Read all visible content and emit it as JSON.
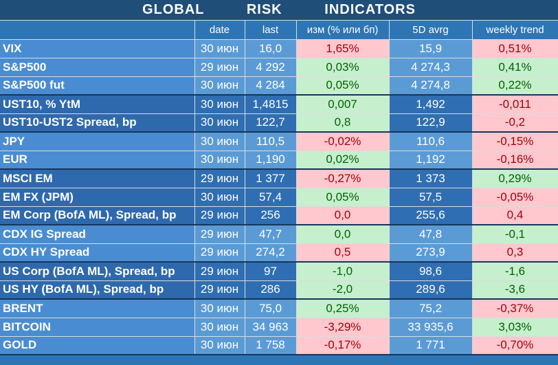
{
  "title": "GLOBAL   RISK   INDICATORS",
  "headers": [
    "",
    "date",
    "last",
    "изм (% или бп)",
    "5D avrg",
    "weekly trend"
  ],
  "colors": {
    "positive_bg": "#c6efce",
    "positive_text": "#006100",
    "negative_bg": "#ffc7ce",
    "negative_text": "#9c0006",
    "header_bg": "#1f4e79"
  },
  "rows": [
    {
      "name": "VIX",
      "date": "30 июн",
      "last": "16,0",
      "chg": "1,65%",
      "chg_sign": "neg",
      "avg": "15,9",
      "trend": "0,51%",
      "trend_sign": "neg",
      "group": 0,
      "group_end": false
    },
    {
      "name": "S&P500",
      "date": "29 июн",
      "last": "4 292",
      "chg": "0,03%",
      "chg_sign": "pos",
      "avg": "4 274,3",
      "trend": "0,41%",
      "trend_sign": "pos",
      "group": 0,
      "group_end": false
    },
    {
      "name": "S&P500 fut",
      "date": "30 июн",
      "last": "4 284",
      "chg": "0,05%",
      "chg_sign": "pos",
      "avg": "4 274,8",
      "trend": "0,22%",
      "trend_sign": "pos",
      "group": 0,
      "group_end": true
    },
    {
      "name": "UST10, % YtM",
      "date": "30 июн",
      "last": "1,4815",
      "chg": "0,007",
      "chg_sign": "pos",
      "avg": "1,492",
      "trend": "-0,011",
      "trend_sign": "neg",
      "group": 1,
      "group_end": false
    },
    {
      "name": "UST10-UST2 Spread, bp",
      "date": "30 июн",
      "last": "122,7",
      "chg": "0,8",
      "chg_sign": "pos",
      "avg": "122,9",
      "trend": "-0,2",
      "trend_sign": "neg",
      "group": 1,
      "group_end": true
    },
    {
      "name": "JPY",
      "date": "30 июн",
      "last": "110,5",
      "chg": "-0,02%",
      "chg_sign": "neg",
      "avg": "110,6",
      "trend": "-0,15%",
      "trend_sign": "neg",
      "group": 0,
      "group_end": false
    },
    {
      "name": "EUR",
      "date": "30 июн",
      "last": "1,190",
      "chg": "0,02%",
      "chg_sign": "pos",
      "avg": "1,192",
      "trend": "-0,16%",
      "trend_sign": "neg",
      "group": 0,
      "group_end": true
    },
    {
      "name": "MSCI EM",
      "date": "29 июн",
      "last": "1 377",
      "chg": "-0,27%",
      "chg_sign": "neg",
      "avg": "1 373",
      "trend": "0,29%",
      "trend_sign": "pos",
      "group": 1,
      "group_end": false
    },
    {
      "name": "EM FX (JPM)",
      "date": "30 июн",
      "last": "57,4",
      "chg": "0,05%",
      "chg_sign": "pos",
      "avg": "57,5",
      "trend": "-0,05%",
      "trend_sign": "neg",
      "group": 1,
      "group_end": false
    },
    {
      "name": "EM Corp (BofA ML), Spread, bp",
      "date": "29 июн",
      "last": "256",
      "chg": "0,0",
      "chg_sign": "neg",
      "avg": "255,6",
      "trend": "0,4",
      "trend_sign": "neg",
      "group": 1,
      "group_end": true
    },
    {
      "name": "CDX IG Spread",
      "date": "29 июн",
      "last": "47,7",
      "chg": "0,0",
      "chg_sign": "pos",
      "avg": "47,8",
      "trend": "-0,1",
      "trend_sign": "pos",
      "group": 0,
      "group_end": false
    },
    {
      "name": "CDX HY Spread",
      "date": "29 июн",
      "last": "274,2",
      "chg": "0,5",
      "chg_sign": "neg",
      "avg": "273,9",
      "trend": "0,3",
      "trend_sign": "neg",
      "group": 0,
      "group_end": true
    },
    {
      "name": "US Corp (BofA ML), Spread, bp",
      "date": "29 июн",
      "last": "97",
      "chg": "-1,0",
      "chg_sign": "pos",
      "avg": "98,6",
      "trend": "-1,6",
      "trend_sign": "pos",
      "group": 1,
      "group_end": false
    },
    {
      "name": "US HY (BofA ML), Spread, bp",
      "date": "29 июн",
      "last": "286",
      "chg": "-2,0",
      "chg_sign": "pos",
      "avg": "289,6",
      "trend": "-3,6",
      "trend_sign": "pos",
      "group": 1,
      "group_end": true
    },
    {
      "name": "BRENT",
      "date": "30 июн",
      "last": "75,0",
      "chg": "0,25%",
      "chg_sign": "pos",
      "avg": "75,2",
      "trend": "-0,37%",
      "trend_sign": "neg",
      "group": 0,
      "group_end": false
    },
    {
      "name": "BITCOIN",
      "date": "30 июн",
      "last": "34 963",
      "chg": "-3,29%",
      "chg_sign": "neg",
      "avg": "33 935,6",
      "trend": "3,03%",
      "trend_sign": "pos",
      "group": 0,
      "group_end": false
    },
    {
      "name": "GOLD",
      "date": "30 июн",
      "last": "1 758",
      "chg": "-0,17%",
      "chg_sign": "neg",
      "avg": "1 771",
      "trend": "-0,70%",
      "trend_sign": "neg",
      "group": 0,
      "group_end": true
    }
  ]
}
